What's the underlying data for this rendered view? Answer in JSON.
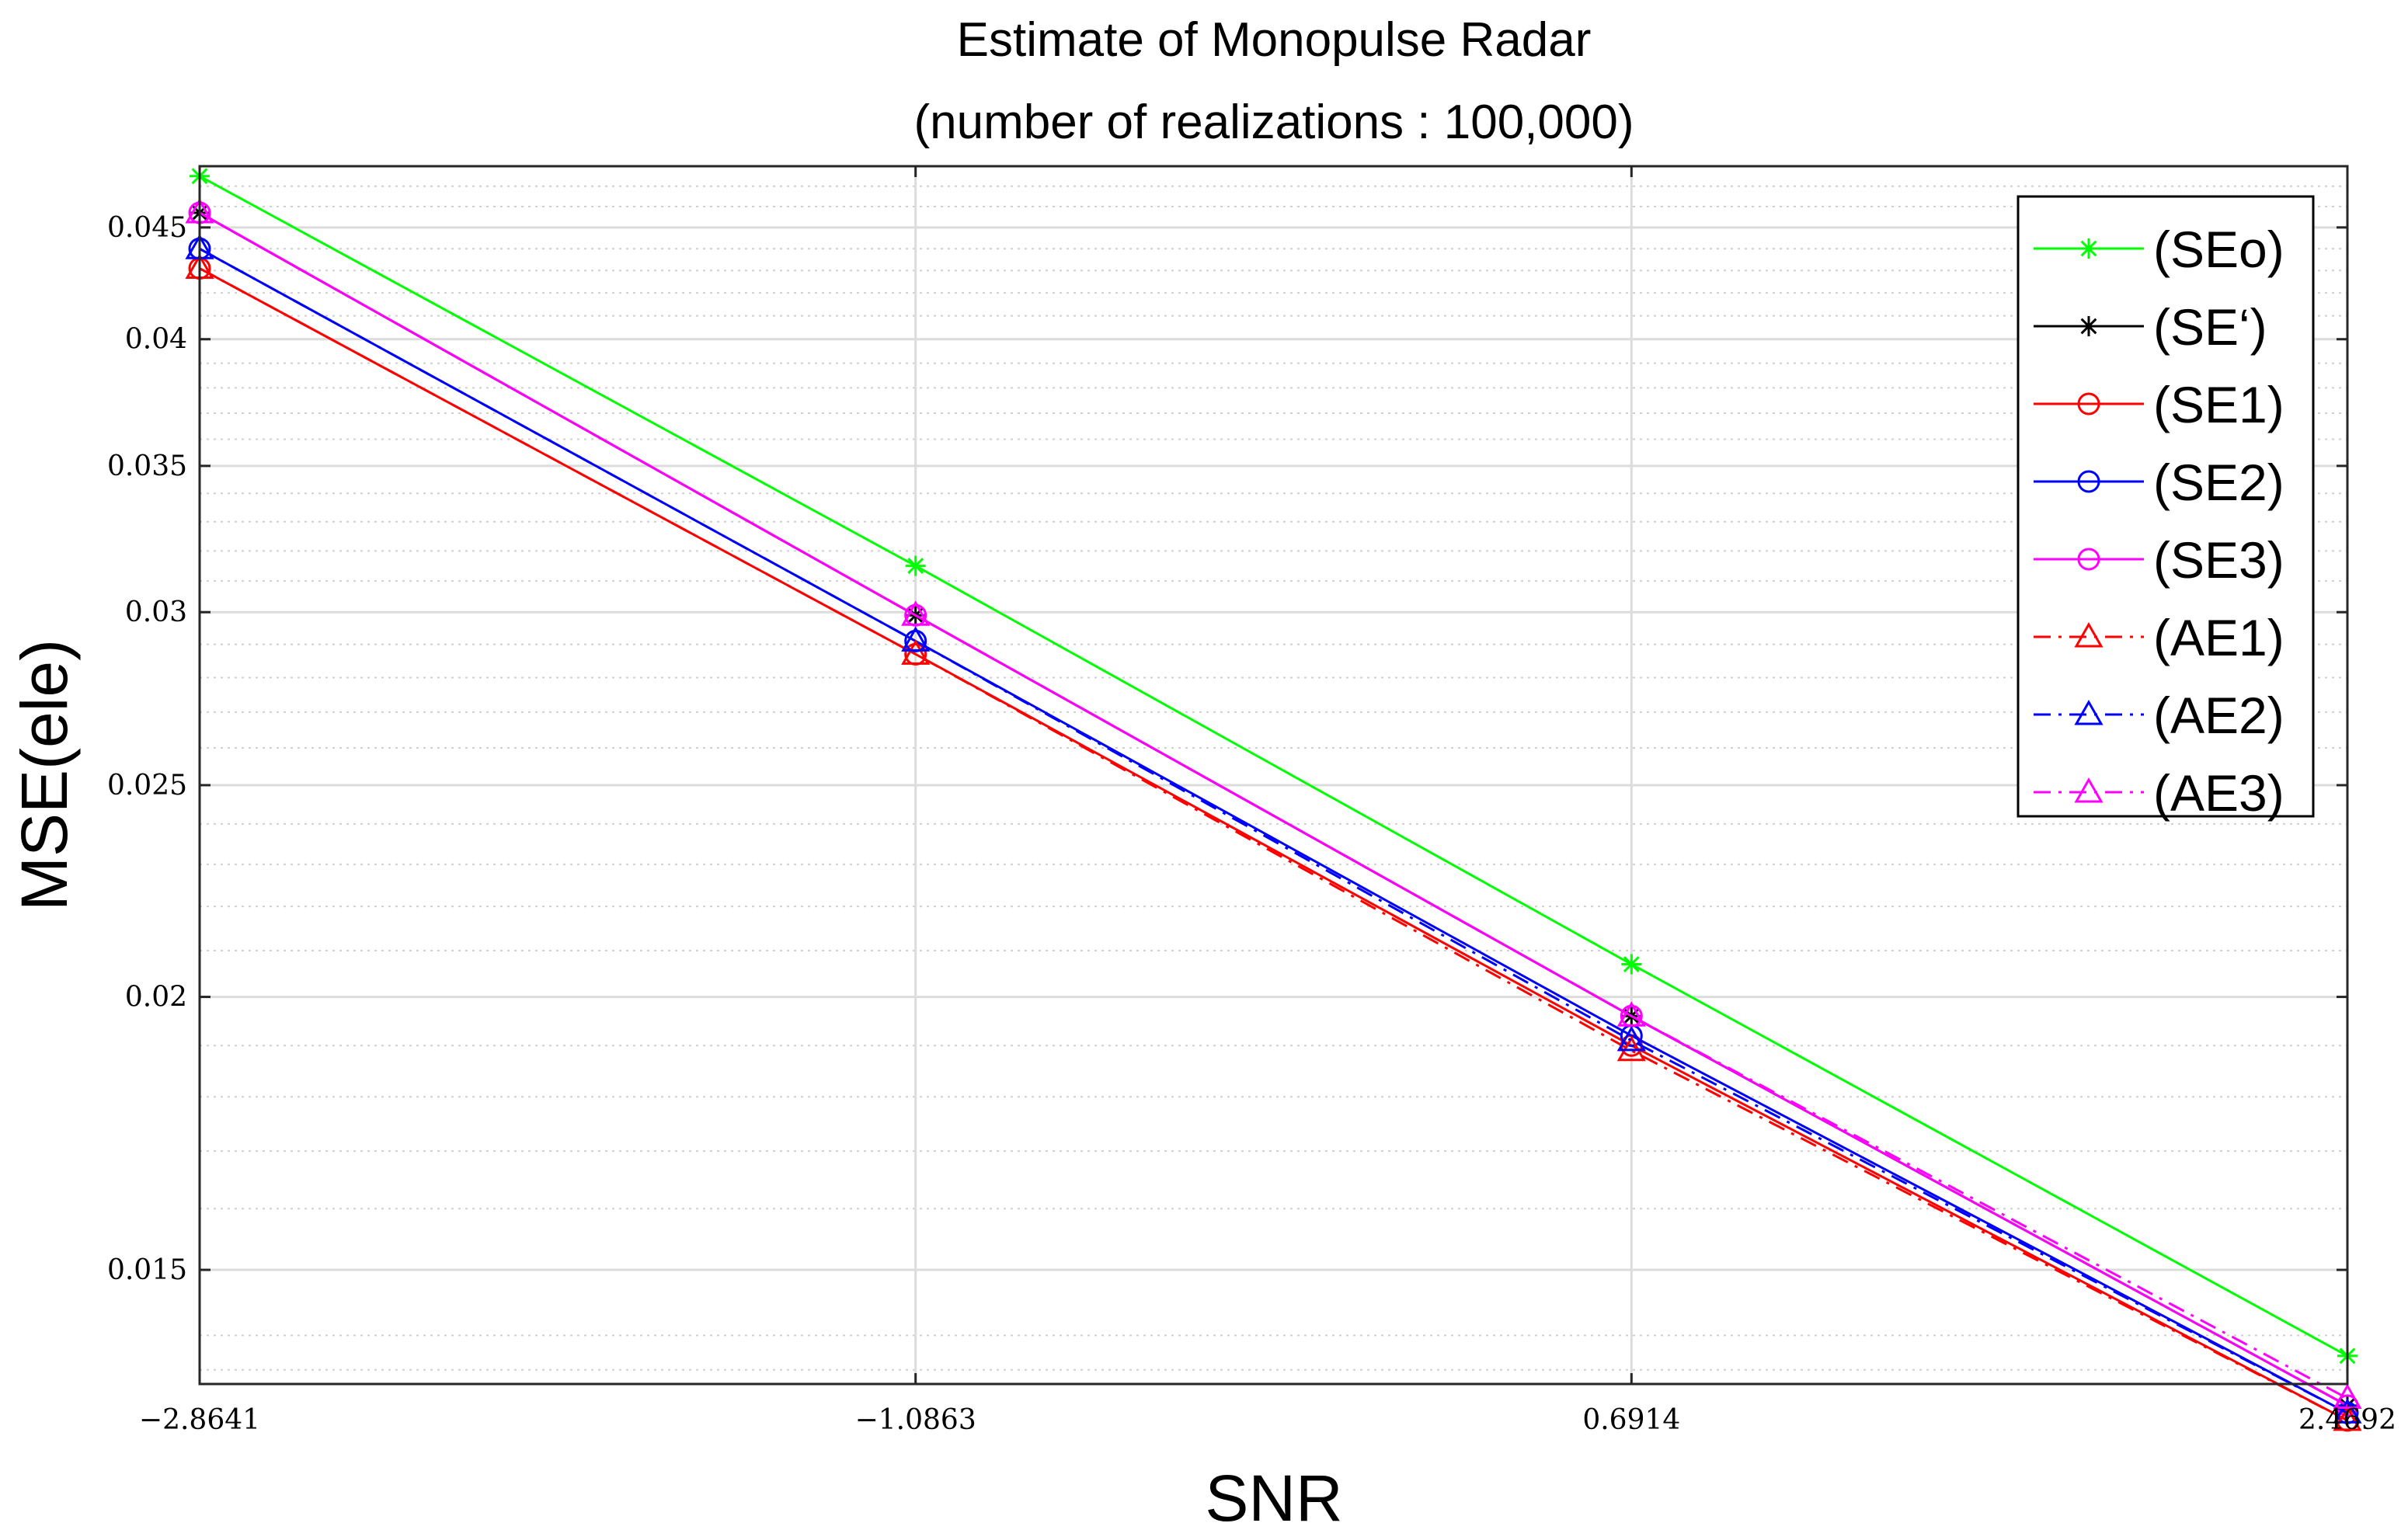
{
  "chart_data": {
    "type": "line",
    "title": "Estimate of Monopulse Radar",
    "subtitle": "(number of realizations : 100,000)",
    "xlabel": "SNR",
    "ylabel": "MSE(ele)",
    "x": [
      -2.8641,
      -1.0863,
      0.6914,
      2.4692
    ],
    "x_tick_labels": [
      "−2.8641",
      "−1.0863",
      "0.6914",
      "2.4692"
    ],
    "y_tick_labels": [
      "0.015",
      "0.02",
      "0.025",
      "0.03",
      "0.035",
      "0.04",
      "0.045"
    ],
    "y_tick_values": [
      0.015,
      0.02,
      0.025,
      0.03,
      0.035,
      0.04,
      0.045
    ],
    "y_minor_values": [
      0.0135,
      0.014,
      0.016,
      0.017,
      0.018,
      0.019,
      0.021,
      0.022,
      0.023,
      0.024,
      0.026,
      0.027,
      0.028,
      0.029,
      0.031,
      0.032,
      0.033,
      0.034,
      0.036,
      0.037,
      0.038,
      0.039,
      0.041,
      0.042,
      0.043,
      0.044,
      0.046,
      0.047
    ],
    "xlim": [
      -2.8641,
      2.4692
    ],
    "ylim": [
      0.0133,
      0.048
    ],
    "yscale": "log",
    "grid": true,
    "legend_position": "top-right",
    "series": [
      {
        "name": "(SEo)",
        "values": [
          0.0475,
          0.0315,
          0.0207,
          0.0137
        ],
        "color": "#00ff00",
        "marker": "star",
        "dash": "solid"
      },
      {
        "name": "(SE‘)",
        "values": [
          0.0457,
          0.0299,
          0.0196,
          0.013
        ],
        "color": "#000000",
        "marker": "asterisk",
        "dash": "solid"
      },
      {
        "name": "(SE1)",
        "values": [
          0.0431,
          0.0287,
          0.019,
          0.0128
        ],
        "color": "#ff0000",
        "marker": "circle",
        "dash": "solid"
      },
      {
        "name": "(SE2)",
        "values": [
          0.044,
          0.0291,
          0.0192,
          0.0129
        ],
        "color": "#0000ff",
        "marker": "circle",
        "dash": "solid"
      },
      {
        "name": "(SE3)",
        "values": [
          0.0457,
          0.0299,
          0.0196,
          0.013
        ],
        "color": "#ff00ff",
        "marker": "circle",
        "dash": "solid"
      },
      {
        "name": "(AE1)",
        "values": [
          0.0431,
          0.0287,
          0.0189,
          0.0128
        ],
        "color": "#ff0000",
        "marker": "triangle",
        "dash": "dashdot"
      },
      {
        "name": "(AE2)",
        "values": [
          0.044,
          0.0291,
          0.0191,
          0.0129
        ],
        "color": "#0000ff",
        "marker": "triangle",
        "dash": "dashdot"
      },
      {
        "name": "(AE3)",
        "values": [
          0.0457,
          0.0299,
          0.0196,
          0.0131
        ],
        "color": "#ff00ff",
        "marker": "triangle",
        "dash": "dashdot"
      }
    ]
  }
}
